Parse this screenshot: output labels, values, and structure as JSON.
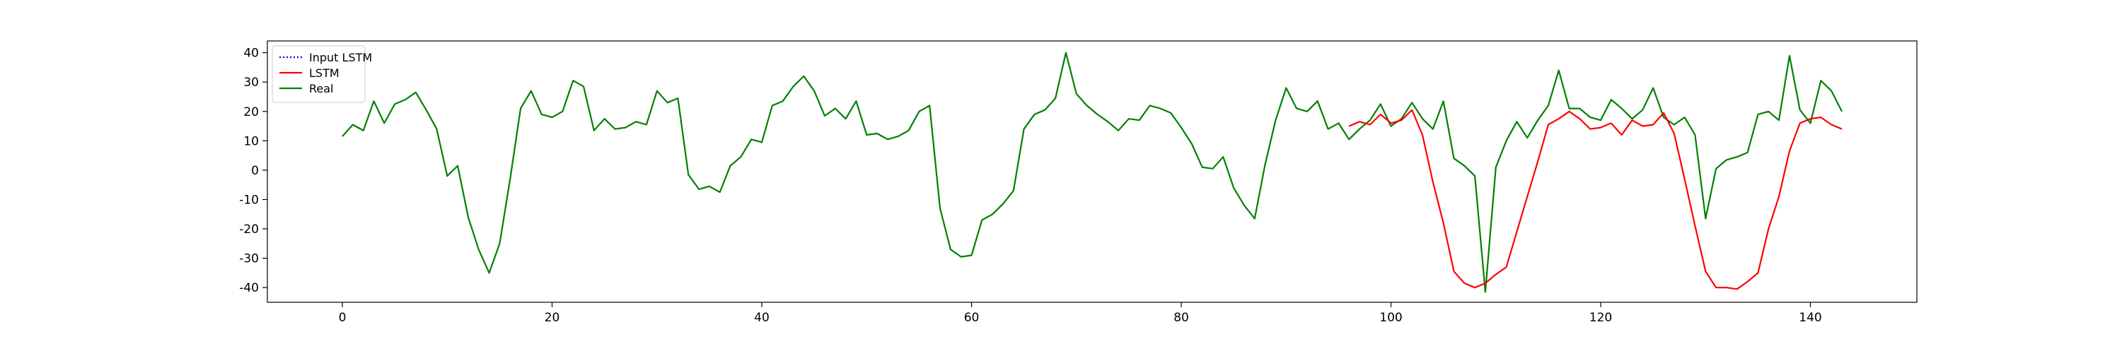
{
  "chart_data": {
    "type": "line",
    "title": "",
    "xlabel": "",
    "ylabel": "",
    "xlim": [
      -7.15,
      150.15
    ],
    "ylim": [
      -45,
      44
    ],
    "xticks": [
      0,
      20,
      40,
      60,
      80,
      100,
      120,
      140
    ],
    "yticks": [
      -40,
      -30,
      -20,
      -10,
      0,
      10,
      20,
      30,
      40
    ],
    "grid": false,
    "legend_position": "top-left",
    "legend": [
      {
        "label": "Input LSTM",
        "color": "#0000ff",
        "style": "dotted"
      },
      {
        "label": "LSTM",
        "color": "#ff0000",
        "style": "solid"
      },
      {
        "label": "Real",
        "color": "#008000",
        "style": "solid"
      }
    ],
    "series": [
      {
        "name": "Input LSTM",
        "color": "#0000ff",
        "style": "dotted",
        "x": [],
        "y": []
      },
      {
        "name": "Real",
        "color": "#008000",
        "style": "solid",
        "x": [
          0,
          1,
          2,
          3,
          4,
          5,
          6,
          7,
          8,
          9,
          10,
          11,
          12,
          13,
          14,
          15,
          16,
          17,
          18,
          19,
          20,
          21,
          22,
          23,
          24,
          25,
          26,
          27,
          28,
          29,
          30,
          31,
          32,
          33,
          34,
          35,
          36,
          37,
          38,
          39,
          40,
          41,
          42,
          43,
          44,
          45,
          46,
          47,
          48,
          49,
          50,
          51,
          52,
          53,
          54,
          55,
          56,
          57,
          58,
          59,
          60,
          61,
          62,
          63,
          64,
          65,
          66,
          67,
          68,
          69,
          70,
          71,
          72,
          73,
          74,
          75,
          76,
          77,
          78,
          79,
          80,
          81,
          82,
          83,
          84,
          85,
          86,
          87,
          88,
          89,
          90,
          91,
          92,
          93,
          94,
          95,
          96,
          97,
          98,
          99,
          100,
          101,
          102,
          103,
          104,
          105,
          106,
          107,
          108,
          109,
          110,
          111,
          112,
          113,
          114,
          115,
          116,
          117,
          118,
          119,
          120,
          121,
          122,
          123,
          124,
          125,
          126,
          127,
          128,
          129,
          130,
          131,
          132,
          133,
          134,
          135,
          136,
          137,
          138,
          139,
          140,
          141,
          142,
          143
        ],
        "y": [
          11.5,
          15.5,
          13.5,
          23.5,
          16,
          22.5,
          24,
          26.5,
          20.5,
          14,
          -2,
          1.5,
          -16,
          -27,
          -35,
          -25,
          -3,
          21,
          27,
          19,
          18,
          20,
          30.5,
          28.5,
          13.5,
          17.5,
          14,
          14.5,
          16.5,
          15.5,
          27,
          23,
          24.5,
          -1.5,
          -6.5,
          -5.5,
          -7.5,
          1.5,
          4.5,
          10.5,
          9.5,
          22,
          23.5,
          28.5,
          32,
          27,
          18.5,
          21,
          17.5,
          23.5,
          12,
          12.5,
          10.5,
          11.5,
          13.5,
          20,
          22,
          -13,
          -27,
          -29.5,
          -29,
          -17,
          -15,
          -11.5,
          -7,
          14,
          19,
          20.5,
          24.5,
          40,
          26,
          22,
          19,
          16.5,
          13.5,
          17.5,
          17,
          22,
          21,
          19.5,
          14.5,
          9,
          1,
          0.5,
          4.5,
          -6,
          -12,
          -16.5,
          2,
          17,
          28,
          21,
          20,
          23.5,
          14,
          16,
          10.5,
          14,
          17,
          22.5,
          15,
          17.5,
          23,
          17.5,
          14,
          23.5,
          4,
          1.5,
          -2,
          -41.5,
          1,
          10,
          16.5,
          11,
          17,
          22,
          34,
          21,
          21,
          18,
          17,
          24,
          21,
          17.5,
          20.5,
          28,
          18,
          15.5,
          18,
          12,
          -16.5,
          0.5,
          3.5,
          4.5,
          6,
          19,
          20,
          17,
          39,
          20.5,
          16,
          30.5,
          27,
          20
        ]
      },
      {
        "name": "LSTM",
        "color": "#ff0000",
        "style": "solid",
        "x": [
          96,
          97,
          98,
          99,
          100,
          101,
          102,
          103,
          104,
          105,
          106,
          107,
          108,
          109,
          110,
          111,
          112,
          113,
          114,
          115,
          116,
          117,
          118,
          119,
          120,
          121,
          122,
          123,
          124,
          125,
          126,
          127,
          128,
          129,
          130,
          131,
          132,
          133,
          134,
          135,
          136,
          137,
          138,
          139,
          140,
          141,
          142,
          143
        ],
        "y": [
          15,
          16.5,
          15.5,
          19,
          16,
          17,
          20.5,
          12,
          -4,
          -18,
          -34.5,
          -38.5,
          -40,
          -38.5,
          -35.5,
          -33,
          -21,
          -9,
          3,
          15.5,
          17.5,
          20,
          17.5,
          14,
          14.5,
          16,
          12,
          17,
          15,
          15.5,
          19.5,
          12.5,
          -3,
          -19,
          -34.5,
          -40,
          -40,
          -40.5,
          -38,
          -35,
          -20,
          -9,
          6.5,
          16,
          17.5,
          18,
          15.5,
          14
        ]
      }
    ]
  }
}
